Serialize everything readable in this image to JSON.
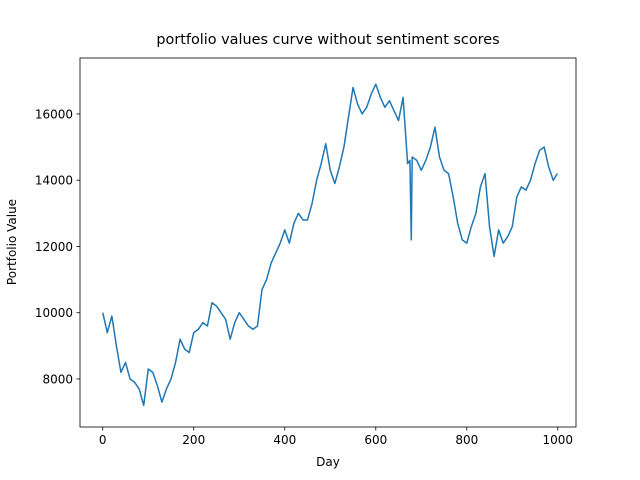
{
  "chart_data": {
    "type": "line",
    "title": "portfolio values curve without sentiment scores",
    "x_label": "Day",
    "y_label": "Portfolio Value",
    "xlim": [
      -50,
      1040
    ],
    "ylim": [
      6550,
      17690
    ],
    "xticks": [
      0,
      200,
      400,
      600,
      800,
      1000
    ],
    "yticks": [
      8000,
      10000,
      12000,
      14000,
      16000
    ],
    "grid": false,
    "x": [
      0,
      10,
      20,
      30,
      40,
      50,
      60,
      70,
      80,
      90,
      100,
      110,
      120,
      130,
      140,
      150,
      160,
      170,
      180,
      190,
      200,
      210,
      220,
      230,
      240,
      250,
      260,
      270,
      280,
      290,
      300,
      310,
      320,
      330,
      340,
      350,
      360,
      370,
      380,
      390,
      400,
      410,
      420,
      430,
      440,
      450,
      460,
      470,
      480,
      490,
      500,
      510,
      520,
      530,
      540,
      550,
      560,
      570,
      580,
      590,
      600,
      610,
      620,
      630,
      640,
      650,
      660,
      670,
      675,
      678,
      680,
      690,
      700,
      710,
      720,
      730,
      740,
      750,
      760,
      770,
      780,
      790,
      800,
      810,
      820,
      830,
      840,
      850,
      860,
      870,
      880,
      890,
      900,
      910,
      920,
      930,
      940,
      950,
      960,
      970,
      980,
      990,
      999
    ],
    "series": [
      {
        "name": "Portfolio Value",
        "color": "#1f77b4",
        "values": [
          10000,
          9400,
          9900,
          9000,
          8200,
          8500,
          8000,
          7900,
          7700,
          7200,
          8300,
          8200,
          7800,
          7300,
          7700,
          8000,
          8500,
          9200,
          8900,
          8800,
          9400,
          9500,
          9700,
          9600,
          10300,
          10200,
          10000,
          9800,
          9200,
          9700,
          10000,
          9800,
          9600,
          9500,
          9600,
          10700,
          11000,
          11500,
          11800,
          12100,
          12500,
          12100,
          12700,
          13000,
          12800,
          12800,
          13300,
          14000,
          14500,
          15100,
          14300,
          13900,
          14400,
          15000,
          15900,
          16800,
          16300,
          16000,
          16200,
          16600,
          16900,
          16500,
          16200,
          16400,
          16100,
          15800,
          16500,
          14500,
          14600,
          12200,
          14700,
          14600,
          14300,
          14600,
          15000,
          15600,
          14700,
          14300,
          14200,
          13500,
          12700,
          12200,
          12100,
          12600,
          13000,
          13800,
          14200,
          12600,
          11700,
          12500,
          12100,
          12300,
          12600,
          13500,
          13800,
          13700,
          14000,
          14500,
          14900,
          15000,
          14400,
          14000,
          14200
        ]
      }
    ]
  }
}
